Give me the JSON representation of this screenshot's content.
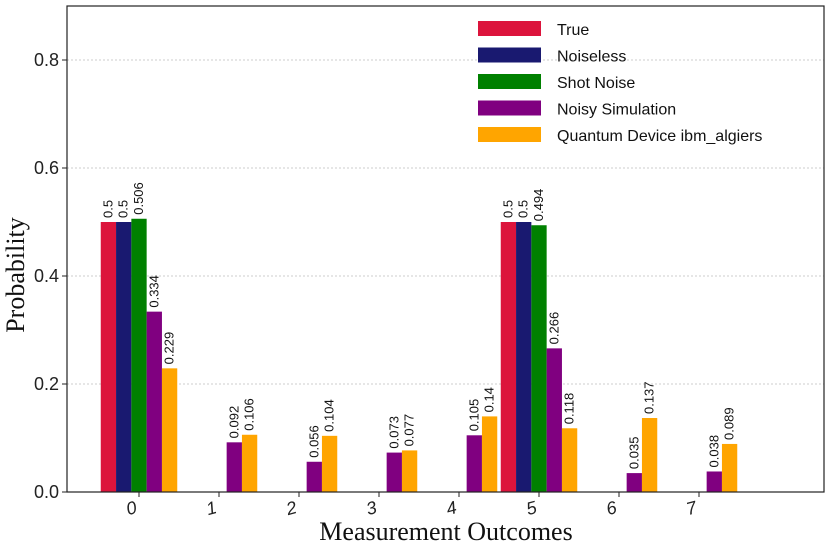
{
  "chart_data": {
    "type": "bar",
    "title": "",
    "xlabel": "Measurement Outcomes",
    "ylabel": "Probability",
    "ylim": [
      0,
      0.9
    ],
    "yticks": [
      "0.0",
      "0.2",
      "0.4",
      "0.6",
      "0.8"
    ],
    "categories": [
      "0",
      "1",
      "2",
      "3",
      "4",
      "5",
      "6",
      "7"
    ],
    "grid": "horizontal dashed",
    "legend_position": "top-right",
    "series": [
      {
        "name": "True",
        "color": "#dc143c",
        "values": [
          0.5,
          0,
          0,
          0,
          0,
          0.5,
          0,
          0
        ],
        "labels": [
          "0.5",
          "",
          "",
          "",
          "",
          "0.5",
          "",
          ""
        ]
      },
      {
        "name": "Noiseless",
        "color": "#191970",
        "values": [
          0.5,
          0,
          0,
          0,
          0,
          0.5,
          0,
          0
        ],
        "labels": [
          "0.5",
          "",
          "",
          "",
          "",
          "0.5",
          "",
          ""
        ]
      },
      {
        "name": "Shot Noise",
        "color": "#008000",
        "values": [
          0.506,
          0,
          0,
          0,
          0,
          0.494,
          0,
          0
        ],
        "labels": [
          "0.506",
          "",
          "",
          "",
          "",
          "0.494",
          "",
          ""
        ]
      },
      {
        "name": "Noisy Simulation",
        "color": "#800080",
        "values": [
          0.334,
          0.092,
          0.056,
          0.073,
          0.105,
          0.266,
          0.035,
          0.038
        ],
        "labels": [
          "0.334",
          "0.092",
          "0.056",
          "0.073",
          "0.105",
          "0.266",
          "0.035",
          "0.038"
        ]
      },
      {
        "name": "Quantum Device ibm_algiers",
        "color": "#ffa500",
        "values": [
          0.229,
          0.106,
          0.104,
          0.077,
          0.14,
          0.118,
          0.137,
          0.089
        ],
        "labels": [
          "0.229",
          "0.106",
          "0.104",
          "0.077",
          "0.14",
          "0.118",
          "0.137",
          "0.089"
        ]
      }
    ]
  }
}
